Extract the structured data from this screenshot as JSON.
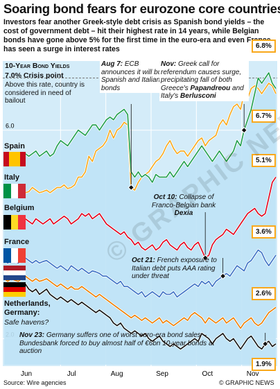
{
  "title": "Soaring bond fears for eurozone core countries",
  "intro": "Investors fear another Greek-style debt crisis as Spanish bond yields – the cost of government debt – hit their highest rate in 14 years, while Belgian bonds have gone above 5% for the first time in the euro-era and even France has seen a surge in interest rates",
  "chart_data": {
    "type": "line",
    "title": "10-Year Bond Yields",
    "x_ticks": [
      "Jun",
      "Jul",
      "Aug",
      "Sep",
      "Oct",
      "Nov"
    ],
    "y_ticks": [
      {
        "value": 6.0,
        "label": "6.0"
      },
      {
        "value": 2.0,
        "label": "2.0"
      }
    ],
    "ylim": [
      1.5,
      7.3
    ],
    "crisis_point": 7.0,
    "series": [
      {
        "name": "Italy",
        "color": "#f9a81b",
        "end_label": "6.7%",
        "values": [
          4.8,
          4.8,
          4.85,
          4.78,
          4.8,
          4.85,
          4.8,
          4.82,
          4.9,
          4.85,
          4.8,
          4.82,
          4.85,
          4.8,
          4.85,
          4.9,
          4.9,
          4.95,
          4.88,
          4.9,
          4.95,
          5.1,
          5.1,
          5.2,
          5.5,
          5.4,
          5.6,
          5.65,
          5.7,
          5.8,
          6.0,
          5.85,
          6.0,
          6.05,
          6.15,
          6.1,
          4.9,
          4.85,
          5.0,
          5.1,
          5.15,
          5.2,
          5.3,
          5.4,
          5.45,
          5.55,
          5.7,
          5.8,
          5.65,
          5.55,
          5.6,
          5.6,
          5.5,
          5.6,
          5.7,
          5.8,
          5.85,
          5.7,
          5.8,
          5.85,
          5.9,
          6.1,
          6.2,
          6.1,
          6.3,
          6.45,
          6.5,
          6.4,
          6.7,
          6.6,
          6.8,
          6.85,
          6.8,
          6.7,
          6.8,
          6.9,
          6.85,
          6.7
        ]
      },
      {
        "name": "Spain",
        "color": "#1e9e4a",
        "end_label": "6.8%",
        "values": [
          5.4,
          5.4,
          5.45,
          5.5,
          5.45,
          5.5,
          5.55,
          5.5,
          5.55,
          5.6,
          5.5,
          5.55,
          5.6,
          5.5,
          5.55,
          5.7,
          5.8,
          5.75,
          5.7,
          5.8,
          5.9,
          6.0,
          5.95,
          5.9,
          6.0,
          6.1,
          6.1,
          6.0,
          6.1,
          6.2,
          6.25,
          6.2,
          6.3,
          6.35,
          6.4,
          6.3,
          5.2,
          5.1,
          5.2,
          5.1,
          5.15,
          5.1,
          5.0,
          5.15,
          5.1,
          5.1,
          5.1,
          5.2,
          5.1,
          5.2,
          5.3,
          5.4,
          5.3,
          5.4,
          5.5,
          5.6,
          5.7,
          5.6,
          5.5,
          5.4,
          5.5,
          5.6,
          5.5,
          5.4,
          5.5,
          5.6,
          5.8,
          5.7,
          6.0,
          6.2,
          6.4,
          6.7,
          7.0,
          6.9,
          7.0,
          7.1,
          6.9,
          6.8
        ]
      },
      {
        "name": "Belgium",
        "color": "#e2001a",
        "end_label": "5.1%",
        "values": [
          4.3,
          4.2,
          4.25,
          4.2,
          4.15,
          4.2,
          4.3,
          4.25,
          4.2,
          4.3,
          4.25,
          4.2,
          4.25,
          4.3,
          4.2,
          4.25,
          4.3,
          4.35,
          4.3,
          4.2,
          4.25,
          4.3,
          4.4,
          4.35,
          4.4,
          4.3,
          4.35,
          4.4,
          4.3,
          4.2,
          4.15,
          4.1,
          4.05,
          4.0,
          4.05,
          3.95,
          3.9,
          3.8,
          3.85,
          3.75,
          3.7,
          3.75,
          3.8,
          3.7,
          3.75,
          3.85,
          3.9,
          3.8,
          3.75,
          3.7,
          3.8,
          3.85,
          3.75,
          3.7,
          3.8,
          3.85,
          3.7,
          3.55,
          3.6,
          3.8,
          3.9,
          3.95,
          4.0,
          4.1,
          4.05,
          4.0,
          4.1,
          4.2,
          4.3,
          4.4,
          4.45,
          4.5,
          4.4,
          4.35,
          4.4,
          4.7,
          5.0,
          5.1
        ]
      },
      {
        "name": "France",
        "color": "#3a6fc4",
        "end_label": "3.6%",
        "values": [
          3.5,
          3.45,
          3.5,
          3.48,
          3.45,
          3.5,
          3.55,
          3.5,
          3.45,
          3.5,
          3.45,
          3.48,
          3.5,
          3.45,
          3.4,
          3.35,
          3.4,
          3.35,
          3.3,
          3.4,
          3.35,
          3.3,
          3.35,
          3.3,
          3.25,
          3.3,
          3.28,
          3.25,
          3.2,
          3.2,
          3.15,
          3.1,
          3.05,
          3.1,
          3.0,
          3.0,
          2.95,
          2.9,
          2.85,
          2.9,
          2.8,
          2.85,
          2.9,
          2.85,
          2.8,
          2.9,
          2.85,
          2.85,
          2.9,
          2.8,
          2.85,
          2.9,
          2.95,
          3.0,
          3.05,
          3.0,
          3.1,
          3.05,
          3.1,
          3.0,
          3.1,
          3.15,
          3.2,
          3.25,
          3.2,
          3.3,
          3.4,
          3.35,
          3.3,
          3.45,
          3.5,
          3.6,
          3.7,
          3.65,
          3.5,
          3.4,
          3.5,
          3.6
        ]
      },
      {
        "name": "Netherlands",
        "color": "#ef7d00",
        "end_label": "2.6%",
        "values": [
          3.15,
          3.1,
          3.15,
          3.12,
          3.1,
          3.15,
          3.2,
          3.15,
          3.1,
          3.15,
          3.1,
          3.12,
          3.15,
          3.1,
          3.05,
          3.0,
          3.05,
          3.0,
          2.95,
          3.0,
          2.95,
          2.95,
          3.0,
          2.95,
          2.9,
          2.85,
          2.8,
          2.85,
          2.8,
          2.75,
          2.7,
          2.65,
          2.6,
          2.55,
          2.5,
          2.45,
          2.4,
          2.45,
          2.4,
          2.35,
          2.4,
          2.35,
          2.3,
          2.35,
          2.4,
          2.3,
          2.35,
          2.3,
          2.25,
          2.3,
          2.35,
          2.4,
          2.35,
          2.45,
          2.5,
          2.45,
          2.4,
          2.3,
          2.4,
          2.35,
          2.3,
          2.35,
          2.4,
          2.3,
          2.35,
          2.4,
          2.3,
          2.2,
          2.3,
          2.35,
          2.4,
          2.3,
          2.25,
          2.3,
          2.4,
          2.5,
          2.55,
          2.6
        ]
      },
      {
        "name": "Germany",
        "color": "#111111",
        "end_label": "1.9%",
        "values": [
          3.05,
          3.0,
          3.05,
          3.0,
          2.95,
          3.0,
          3.05,
          2.95,
          2.9,
          2.95,
          2.85,
          2.9,
          2.95,
          2.85,
          2.8,
          2.75,
          2.8,
          2.75,
          2.7,
          2.75,
          2.7,
          2.65,
          2.7,
          2.65,
          2.6,
          2.55,
          2.5,
          2.55,
          2.5,
          2.45,
          2.4,
          2.3,
          2.25,
          2.3,
          2.2,
          2.15,
          2.1,
          2.15,
          2.1,
          2.05,
          2.1,
          2.0,
          1.95,
          2.0,
          2.05,
          1.95,
          1.9,
          1.85,
          1.9,
          1.85,
          1.8,
          1.85,
          1.9,
          1.95,
          2.0,
          1.95,
          2.1,
          2.05,
          2.0,
          1.9,
          2.0,
          2.05,
          2.1,
          2.0,
          1.95,
          2.0,
          1.9,
          1.8,
          1.9,
          2.0,
          2.05,
          1.95,
          1.85,
          1.8,
          1.9,
          1.95,
          1.85,
          1.9
        ]
      }
    ]
  },
  "crisis": {
    "title": "7.0% Crisis point",
    "text": "Above this rate, country is considered in need of bailout"
  },
  "annotations": {
    "aug7_date": "Aug 7:",
    "aug7_text": " ECB announces it will buy Spanish and Italian bonds",
    "nov_date": "Nov:",
    "nov_text1": " Greek call for referendum causes surge, precipitating fall of both Greece's ",
    "nov_papandreou": "Papandreou",
    "nov_and": " and Italy's ",
    "nov_berlusconi": "Berlusconi",
    "oct10_date": "Oct 10:",
    "oct10_text": " Collapse of Franco-Belgian bank ",
    "oct10_dexia": "Dexia",
    "oct21_date": "Oct 21:",
    "oct21_text": " French exposure to Italian debt puts AAA rating under threat",
    "nov23_date": "Nov 23:",
    "nov23_text": " Germany suffers one of worst euro-era bond sales – Bundesbank forced to buy almost half of €6bn 10-year bonds at auction"
  },
  "country_labels": {
    "spain": "Spain",
    "italy": "Italy",
    "belgium": "Belgium",
    "france": "France",
    "netherlands_germany": "Netherlands,",
    "germany": "Germany:",
    "safe_havens": "Safe havens?"
  },
  "flags": {
    "spain": [
      "#c60b1e",
      "#ffc400",
      "#c60b1e"
    ],
    "italy": [
      "#009246",
      "#ffffff",
      "#ce2b37"
    ],
    "belgium": [
      "#000000",
      "#fdda24",
      "#ef3340"
    ],
    "france": [
      "#0055a4",
      "#ffffff",
      "#ef4135"
    ],
    "netherlands": [
      "#ae1c28",
      "#ffffff",
      "#21468b"
    ],
    "germany": [
      "#000000",
      "#dd0000",
      "#ffce00"
    ]
  },
  "source": "Source: Wire agencies",
  "credit": "© GRAPHIC NEWS",
  "watermark": "© GRAPHIC NEWS"
}
